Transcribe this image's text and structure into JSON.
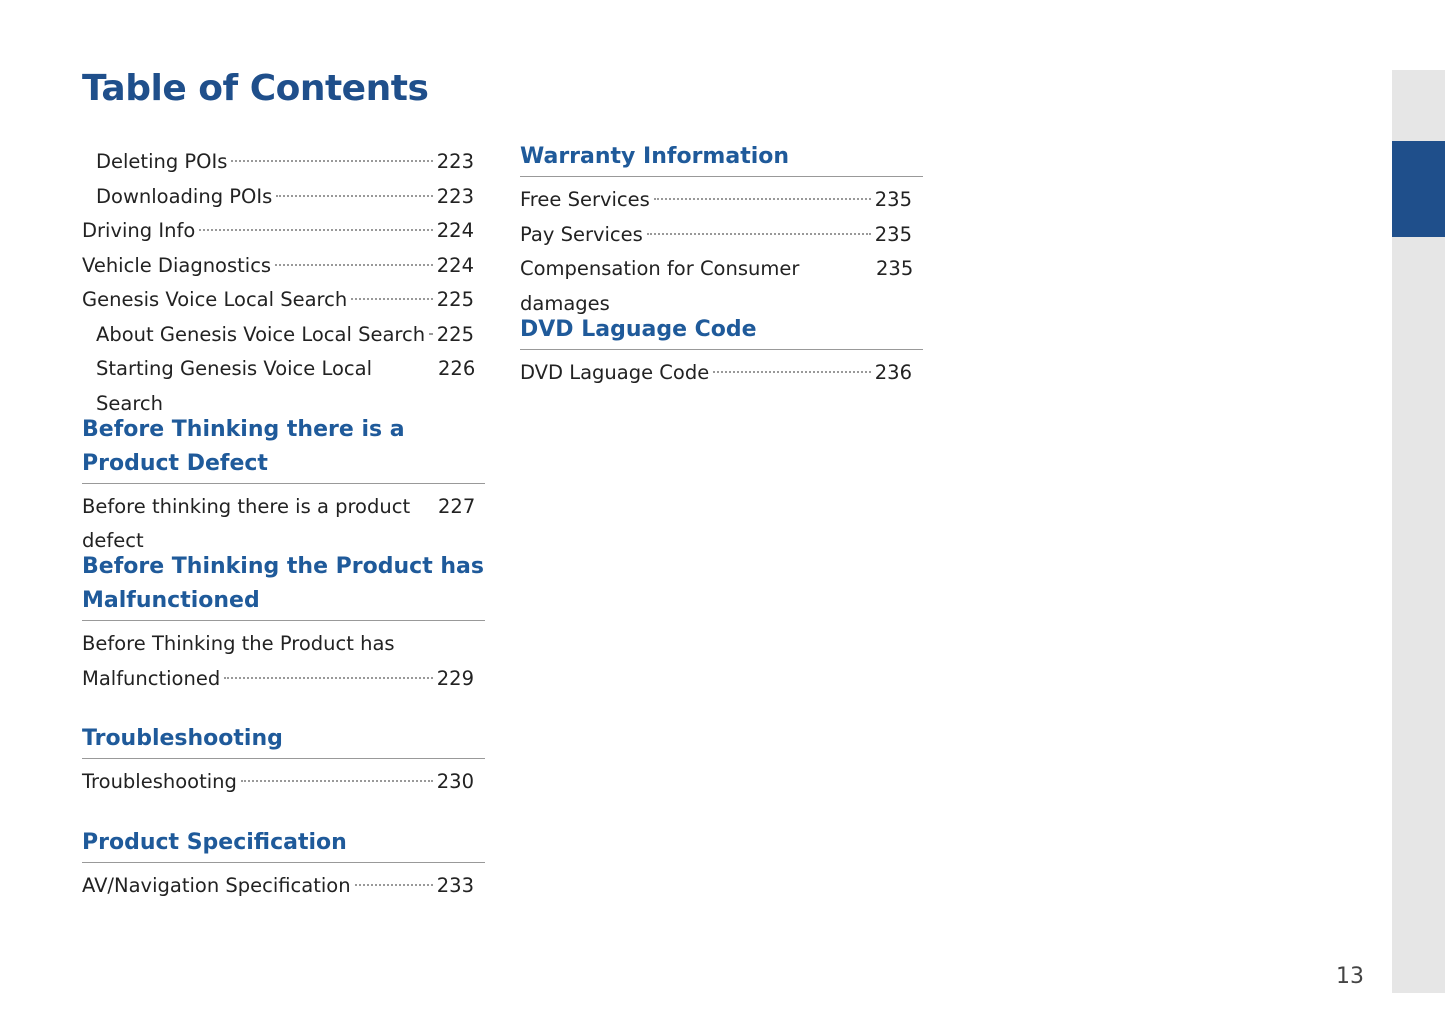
{
  "title": "Table of Contents",
  "col1_entries": [
    {
      "label": "Deleting POIs",
      "page": "223",
      "sub": true
    },
    {
      "label": "Downloading POIs",
      "page": "223",
      "sub": true
    },
    {
      "label": "Driving Info",
      "page": "224"
    },
    {
      "label": "Vehicle Diagnostics",
      "page": "224"
    },
    {
      "label": "Genesis Voice Local Search",
      "page": "225"
    },
    {
      "label": "About Genesis Voice Local Search",
      "page": "225",
      "sub": true
    },
    {
      "label": "Starting Genesis Voice Local Search",
      "page": "226",
      "sub": true
    }
  ],
  "sections": [
    {
      "heading": "Before Thinking there is a Product Defect",
      "entries": [
        {
          "label": "Before thinking there is a product defect",
          "page": "227"
        }
      ]
    },
    {
      "heading": "Before Thinking the Product has Malfunctioned",
      "entries": [
        {
          "label_line1": "Before Thinking the Product has",
          "label": "Malfunctioned",
          "page": "229"
        }
      ]
    },
    {
      "heading": "Troubleshooting",
      "entries": [
        {
          "label": "Troubleshooting",
          "page": "230"
        }
      ]
    },
    {
      "heading": "Product Specification",
      "entries": [
        {
          "label": "AV/Navigation Specification",
          "page": "233"
        }
      ]
    },
    {
      "heading": "Warranty Information",
      "entries": [
        {
          "label": "Free Services",
          "page": "235"
        },
        {
          "label": "Pay Services",
          "page": "235"
        },
        {
          "label": "Compensation for Consumer damages",
          "page": "235"
        }
      ]
    },
    {
      "heading": "DVD Laguage Code",
      "entries": [
        {
          "label": "DVD Laguage Code",
          "page": "236"
        }
      ]
    }
  ],
  "page_number": "13",
  "colors": {
    "accent": "#1f4f8b",
    "heading": "#1f5a9a",
    "sidebar": "#e6e6e6"
  }
}
